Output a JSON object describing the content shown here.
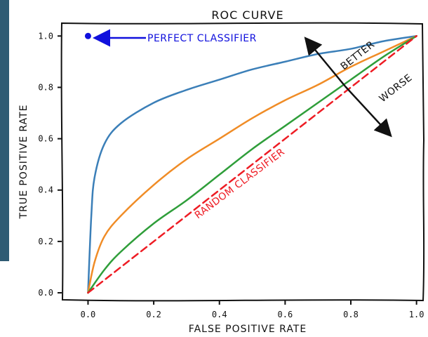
{
  "chart_data": {
    "type": "line",
    "title": "ROC CURVE",
    "xlabel": "FALSE POSITIVE RATE",
    "ylabel": "TRUE POSITIVE RATE",
    "xlim": [
      -0.08,
      1.02
    ],
    "ylim": [
      -0.03,
      1.05
    ],
    "xticks": [
      0.0,
      0.2,
      0.4,
      0.6,
      0.8,
      1.0
    ],
    "xtick_labels": [
      "0.0",
      "0.2",
      "0.4",
      "0.6",
      "0.8",
      "1.0"
    ],
    "yticks": [
      0.0,
      0.2,
      0.4,
      0.6,
      0.8,
      1.0
    ],
    "ytick_labels": [
      "0.0",
      "0.2",
      "0.4",
      "0.6",
      "0.8",
      "1.0"
    ],
    "grid": false,
    "series": [
      {
        "color": "#3b7fb8",
        "style": "solid",
        "x": [
          0.0,
          0.01,
          0.02,
          0.05,
          0.1,
          0.2,
          0.3,
          0.4,
          0.5,
          0.6,
          0.7,
          0.8,
          0.9,
          1.0
        ],
        "y": [
          0.0,
          0.3,
          0.45,
          0.58,
          0.66,
          0.74,
          0.79,
          0.83,
          0.87,
          0.9,
          0.93,
          0.95,
          0.98,
          1.0
        ]
      },
      {
        "color": "#f08c26",
        "style": "solid",
        "x": [
          0.0,
          0.02,
          0.05,
          0.1,
          0.2,
          0.3,
          0.4,
          0.5,
          0.6,
          0.7,
          0.8,
          0.9,
          1.0
        ],
        "y": [
          0.0,
          0.12,
          0.22,
          0.3,
          0.42,
          0.52,
          0.6,
          0.68,
          0.75,
          0.81,
          0.88,
          0.94,
          1.0
        ]
      },
      {
        "color": "#2f9e3a",
        "style": "solid",
        "x": [
          0.0,
          0.05,
          0.1,
          0.2,
          0.3,
          0.4,
          0.5,
          0.6,
          0.7,
          0.8,
          0.9,
          1.0
        ],
        "y": [
          0.0,
          0.09,
          0.16,
          0.27,
          0.36,
          0.46,
          0.56,
          0.65,
          0.74,
          0.83,
          0.92,
          1.0
        ]
      },
      {
        "color": "#ee1c24",
        "style": "dashed",
        "x": [
          0.0,
          1.0
        ],
        "y": [
          0.0,
          1.0
        ]
      }
    ],
    "point": {
      "x": 0.0,
      "y": 1.0,
      "color": "#1010dd"
    },
    "annotations": {
      "perfect": {
        "text": "PERFECT CLASSIFIER",
        "color": "#1010dd"
      },
      "random": {
        "text": "RANDOM CLASSIFIER",
        "color": "#ee1c24"
      },
      "better": {
        "text": "BETTER",
        "color": "#111111"
      },
      "worse": {
        "text": "WORSE",
        "color": "#111111"
      }
    }
  }
}
